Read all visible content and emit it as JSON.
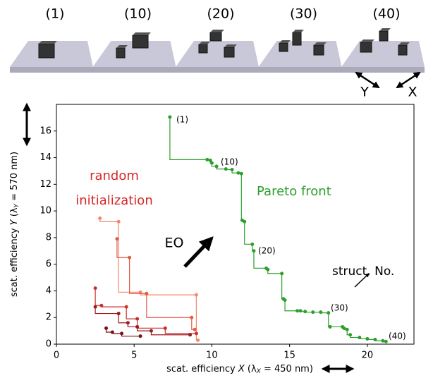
{
  "chart_data": {
    "type": "step",
    "panel_labels": [
      "(1)",
      "(10)",
      "(20)",
      "(30)",
      "(40)"
    ],
    "direction_labels": [
      "Y",
      "X"
    ],
    "xlabel": [
      "scat. efficiency ",
      "X",
      " (λ",
      "X",
      " = 450 nm)"
    ],
    "ylabel": [
      "scat. efficiency ",
      "Y",
      " (λ",
      "Y",
      " = 570 nm)"
    ],
    "xlim": [
      0,
      23
    ],
    "ylim": [
      0,
      18
    ],
    "xticks": [
      0,
      5,
      10,
      15,
      20
    ],
    "yticks": [
      0,
      2,
      4,
      6,
      8,
      10,
      12,
      14,
      16
    ],
    "series": [
      {
        "name": "Pareto front",
        "color": "#2ca02c",
        "x": [
          7.3,
          9.7,
          9.9,
          10.0,
          10.3,
          10.9,
          11.3,
          11.7,
          11.9,
          11.95,
          12.1,
          12.6,
          12.7,
          13.5,
          13.6,
          14.5,
          14.6,
          14.7,
          15.5,
          15.7,
          16.0,
          16.5,
          17.0,
          17.5,
          17.6,
          18.4,
          18.5,
          18.7,
          18.9,
          19.5,
          20.0,
          20.5,
          21.0,
          21.2
        ],
        "values": [
          17.05,
          13.85,
          13.8,
          13.6,
          13.35,
          13.15,
          13.1,
          12.85,
          12.8,
          9.3,
          9.2,
          7.5,
          7.0,
          5.7,
          5.6,
          5.3,
          3.4,
          3.3,
          2.5,
          2.5,
          2.45,
          2.4,
          2.4,
          2.35,
          1.3,
          1.3,
          1.2,
          1.1,
          0.7,
          0.5,
          0.4,
          0.35,
          0.25,
          0.2
        ]
      },
      {
        "color": "#f4876a",
        "x": [
          2.8,
          4.0,
          5.4,
          9.0,
          9.1
        ],
        "values": [
          9.45,
          9.2,
          3.9,
          3.7,
          0.3
        ]
      },
      {
        "color": "#e35a43",
        "x": [
          3.9,
          4.7,
          5.8,
          8.7,
          8.9
        ],
        "values": [
          7.9,
          6.5,
          3.8,
          2.0,
          1.1
        ]
      },
      {
        "color": "#c8302c",
        "x": [
          2.5,
          2.9,
          4.5,
          5.2,
          7.0,
          9.0
        ],
        "values": [
          4.2,
          2.9,
          2.8,
          1.9,
          1.2,
          0.8
        ]
      },
      {
        "color": "#9e1a1e",
        "x": [
          2.5,
          4.0,
          4.6,
          5.2,
          6.1,
          8.6
        ],
        "values": [
          2.8,
          2.3,
          1.6,
          1.3,
          1.0,
          0.7
        ]
      },
      {
        "color": "#7a0f14",
        "x": [
          3.2,
          3.6,
          4.2,
          5.4
        ],
        "values": [
          1.2,
          0.9,
          0.8,
          0.6
        ]
      }
    ],
    "point_labels": [
      "(1)",
      "(10)",
      "(20)",
      "(30)",
      "(40)"
    ],
    "annotations": {
      "pareto": "Pareto front",
      "random": [
        "random",
        "initialization"
      ],
      "eo": "EO",
      "struct": "struct. No."
    }
  }
}
